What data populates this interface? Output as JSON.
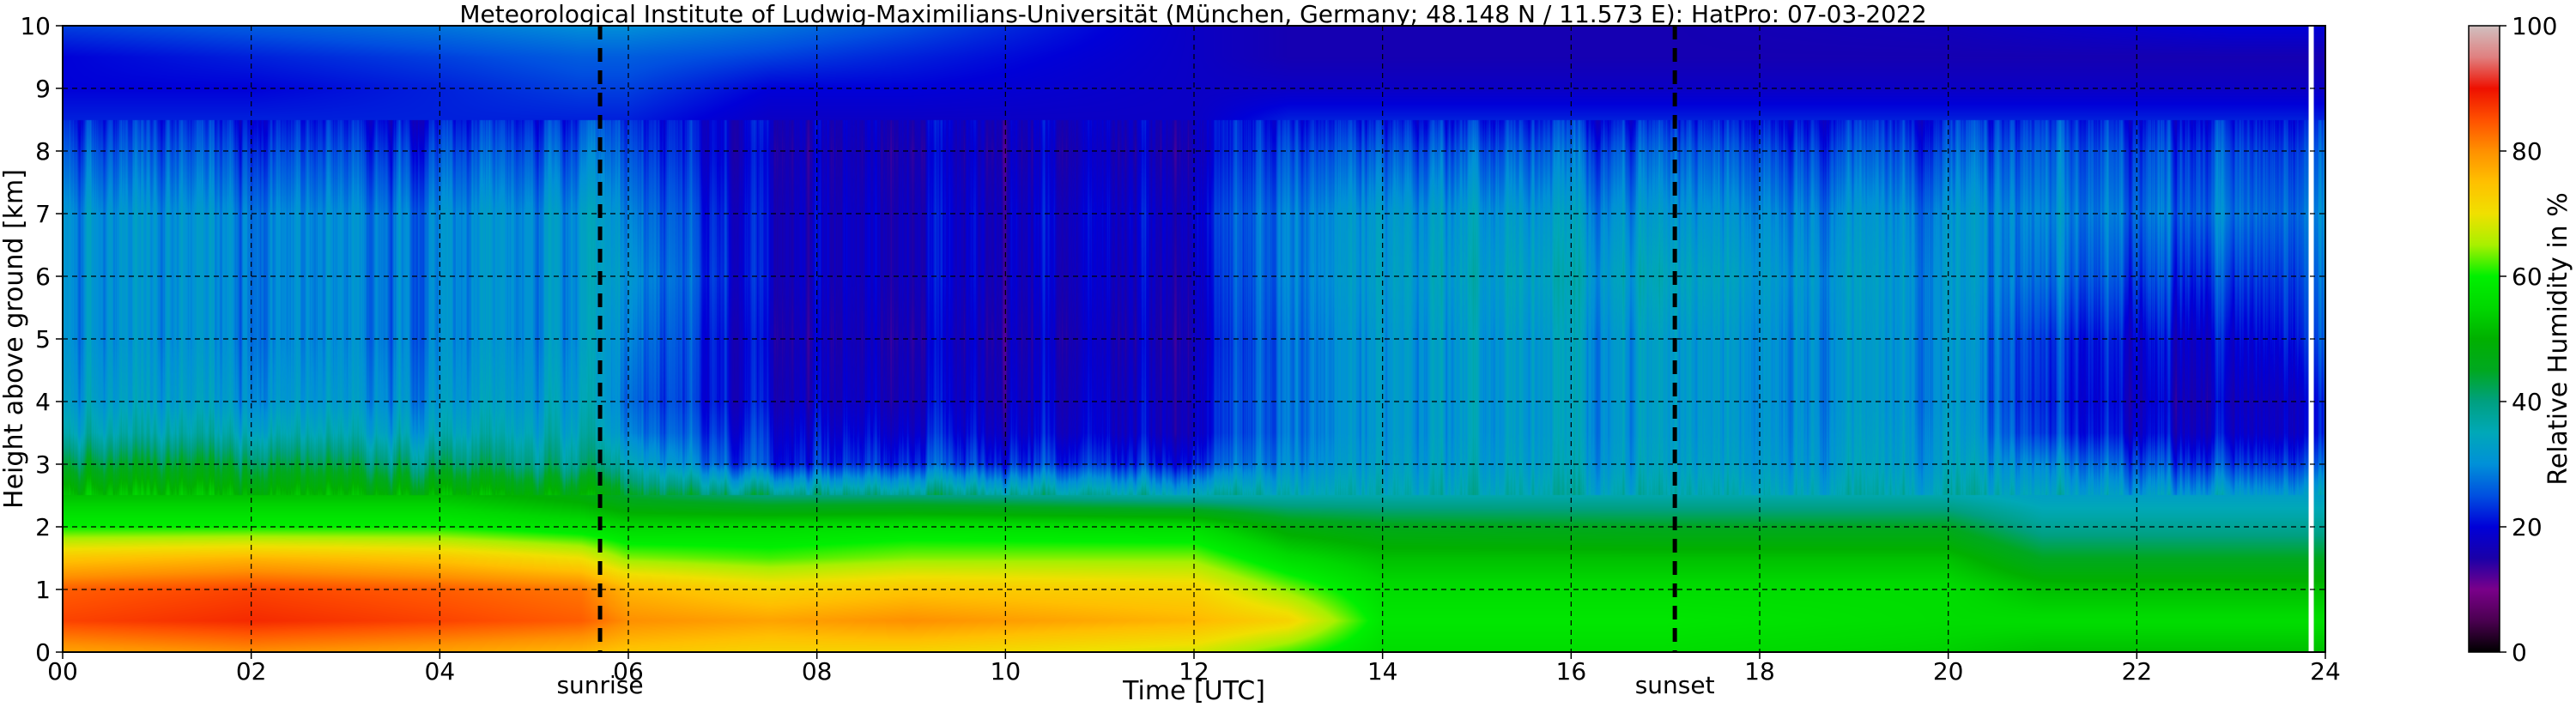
{
  "chart_data": {
    "type": "heatmap",
    "title": "Meteorological Institute of Ludwig-Maximilians-Universität (München, Germany; 48.148 N / 11.573 E):     HatPro: 07-03-2022",
    "xlabel": "Time [UTC]",
    "ylabel": "Height above ground [km]",
    "xlim": [
      0,
      24
    ],
    "ylim": [
      0,
      10
    ],
    "x_ticks": [
      0,
      2,
      4,
      6,
      8,
      10,
      12,
      14,
      16,
      18,
      20,
      22,
      24
    ],
    "x_tick_labels": [
      "00",
      "02",
      "04",
      "06",
      "08",
      "10",
      "12",
      "14",
      "16",
      "18",
      "20",
      "22",
      "24"
    ],
    "y_ticks": [
      0,
      1,
      2,
      3,
      4,
      5,
      6,
      7,
      8,
      9,
      10
    ],
    "y_tick_labels": [
      "0",
      "1",
      "2",
      "3",
      "4",
      "5",
      "6",
      "7",
      "8",
      "9",
      "10"
    ],
    "grid": true,
    "events": [
      {
        "label": "sunrise",
        "time": 5.7
      },
      {
        "label": "sunset",
        "time": 17.1
      }
    ],
    "data_gap_time": 23.85,
    "colorbar": {
      "label": "Relative Humidity in %",
      "range": [
        0,
        100
      ],
      "ticks": [
        0,
        20,
        40,
        60,
        80,
        100
      ],
      "colors": [
        [
          0,
          "#000000"
        ],
        [
          0.05,
          "#4a0050"
        ],
        [
          0.1,
          "#7a008a"
        ],
        [
          0.15,
          "#1a00a8"
        ],
        [
          0.2,
          "#0000d8"
        ],
        [
          0.25,
          "#0050e0"
        ],
        [
          0.3,
          "#0090d8"
        ],
        [
          0.35,
          "#00a8b8"
        ],
        [
          0.4,
          "#00a080"
        ],
        [
          0.45,
          "#00a820"
        ],
        [
          0.5,
          "#00b000"
        ],
        [
          0.55,
          "#00d800"
        ],
        [
          0.6,
          "#00f000"
        ],
        [
          0.65,
          "#a8f000"
        ],
        [
          0.7,
          "#f0e000"
        ],
        [
          0.75,
          "#ffc000"
        ],
        [
          0.8,
          "#ff9000"
        ],
        [
          0.85,
          "#ff5000"
        ],
        [
          0.9,
          "#ee1000"
        ],
        [
          0.95,
          "#e08080"
        ],
        [
          1.0,
          "#d0c0c0"
        ]
      ]
    },
    "profiles": {
      "heights_km": [
        0,
        0.5,
        1,
        1.5,
        2,
        2.5,
        3,
        3.5,
        4,
        5,
        6,
        7,
        8,
        8.5,
        9,
        9.5,
        10
      ],
      "times_h": [
        0,
        2,
        4,
        5.5,
        6,
        7.5,
        9,
        12,
        13,
        14,
        17,
        20,
        21,
        23,
        24
      ],
      "rh_percent": [
        [
          78,
          86,
          84,
          74,
          60,
          52,
          43,
          35,
          32,
          30,
          30,
          30,
          25,
          22,
          20,
          20,
          24
        ],
        [
          80,
          88,
          86,
          76,
          60,
          52,
          44,
          36,
          32,
          30,
          30,
          30,
          25,
          22,
          20,
          22,
          26
        ],
        [
          78,
          86,
          84,
          74,
          60,
          52,
          42,
          35,
          32,
          30,
          30,
          30,
          25,
          22,
          22,
          24,
          28
        ],
        [
          76,
          84,
          82,
          70,
          57,
          48,
          38,
          34,
          32,
          30,
          30,
          30,
          25,
          22,
          24,
          26,
          30
        ],
        [
          74,
          80,
          76,
          64,
          55,
          44,
          34,
          28,
          26,
          28,
          30,
          28,
          24,
          22,
          24,
          26,
          30
        ],
        [
          72,
          78,
          72,
          62,
          56,
          40,
          22,
          20,
          18,
          17,
          18,
          18,
          17,
          18,
          20,
          24,
          28
        ],
        [
          72,
          80,
          74,
          64,
          57,
          40,
          24,
          20,
          18,
          17,
          18,
          18,
          17,
          18,
          20,
          22,
          25
        ],
        [
          68,
          76,
          72,
          64,
          56,
          36,
          22,
          18,
          18,
          17,
          18,
          19,
          17,
          18,
          18,
          18,
          18
        ],
        [
          62,
          72,
          64,
          56,
          48,
          36,
          30,
          28,
          28,
          28,
          29,
          29,
          25,
          22,
          18,
          16,
          16
        ],
        [
          56,
          58,
          56,
          52,
          46,
          36,
          33,
          32,
          32,
          32,
          33,
          32,
          26,
          22,
          18,
          16,
          16
        ],
        [
          56,
          58,
          56,
          52,
          45,
          36,
          33,
          32,
          32,
          32,
          34,
          31,
          26,
          22,
          18,
          16,
          16
        ],
        [
          54,
          56,
          56,
          52,
          45,
          36,
          33,
          32,
          31,
          31,
          31,
          30,
          25,
          22,
          18,
          16,
          17
        ],
        [
          52,
          56,
          52,
          45,
          38,
          33,
          28,
          22,
          21,
          22,
          26,
          28,
          25,
          22,
          18,
          16,
          18
        ],
        [
          52,
          56,
          52,
          45,
          38,
          33,
          24,
          19,
          18,
          20,
          24,
          28,
          25,
          22,
          18,
          16,
          20
        ],
        [
          52,
          56,
          52,
          45,
          38,
          33,
          25,
          20,
          20,
          24,
          26,
          28,
          25,
          22,
          18,
          16,
          20
        ]
      ]
    }
  }
}
